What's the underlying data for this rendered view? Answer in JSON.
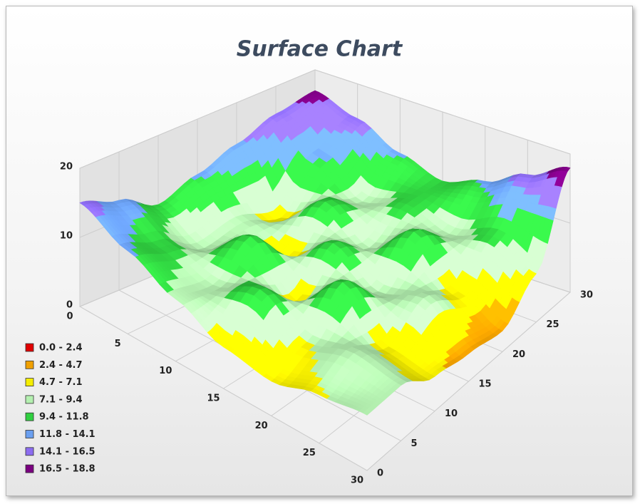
{
  "chart_data": {
    "type": "surface",
    "title": "Surface Chart",
    "x": [
      0,
      5,
      10,
      15,
      20,
      25,
      30
    ],
    "y": [
      0,
      5,
      10,
      15,
      20,
      25,
      30
    ],
    "z": [
      [
        15,
        12,
        9,
        6,
        5,
        7,
        8
      ],
      [
        13,
        10,
        8,
        11,
        7,
        9,
        8
      ],
      [
        10,
        7,
        12,
        6,
        12,
        6,
        5
      ],
      [
        12,
        8,
        6,
        11,
        7,
        9,
        4
      ],
      [
        14,
        6,
        11,
        7,
        12,
        6,
        3
      ],
      [
        16,
        12,
        8,
        10,
        8,
        10,
        7
      ],
      [
        17,
        15,
        12,
        10,
        12,
        15,
        18
      ]
    ],
    "xlim": [
      0,
      30
    ],
    "ylim": [
      0,
      30
    ],
    "zlim": [
      0,
      20
    ],
    "xticks": [
      0,
      5,
      10,
      15,
      20,
      25,
      30
    ],
    "yticks": [
      0,
      5,
      10,
      15,
      20,
      25,
      30
    ],
    "zticks": [
      0,
      10,
      20
    ],
    "grid": true,
    "bands": [
      {
        "from": 0,
        "to": 2.4,
        "label": "0.0 - 2.4",
        "color": "#e00000"
      },
      {
        "from": 2.4,
        "to": 4.7,
        "label": "2.4 - 4.7",
        "color": "#f0a000"
      },
      {
        "from": 4.7,
        "to": 7.1,
        "label": "4.7 - 7.1",
        "color": "#f5ee00"
      },
      {
        "from": 7.1,
        "to": 9.4,
        "label": "7.1 - 9.4",
        "color": "#b4f0b0"
      },
      {
        "from": 9.4,
        "to": 11.8,
        "label": "9.4 - 11.8",
        "color": "#30d040"
      },
      {
        "from": 11.8,
        "to": 14.1,
        "label": "11.8 - 14.1",
        "color": "#6a9ff0"
      },
      {
        "from": 14.1,
        "to": 16.5,
        "label": "14.1 - 16.5",
        "color": "#8c6cf0"
      },
      {
        "from": 16.5,
        "to": 18.8,
        "label": "16.5 - 18.8",
        "color": "#7a0080"
      }
    ]
  }
}
